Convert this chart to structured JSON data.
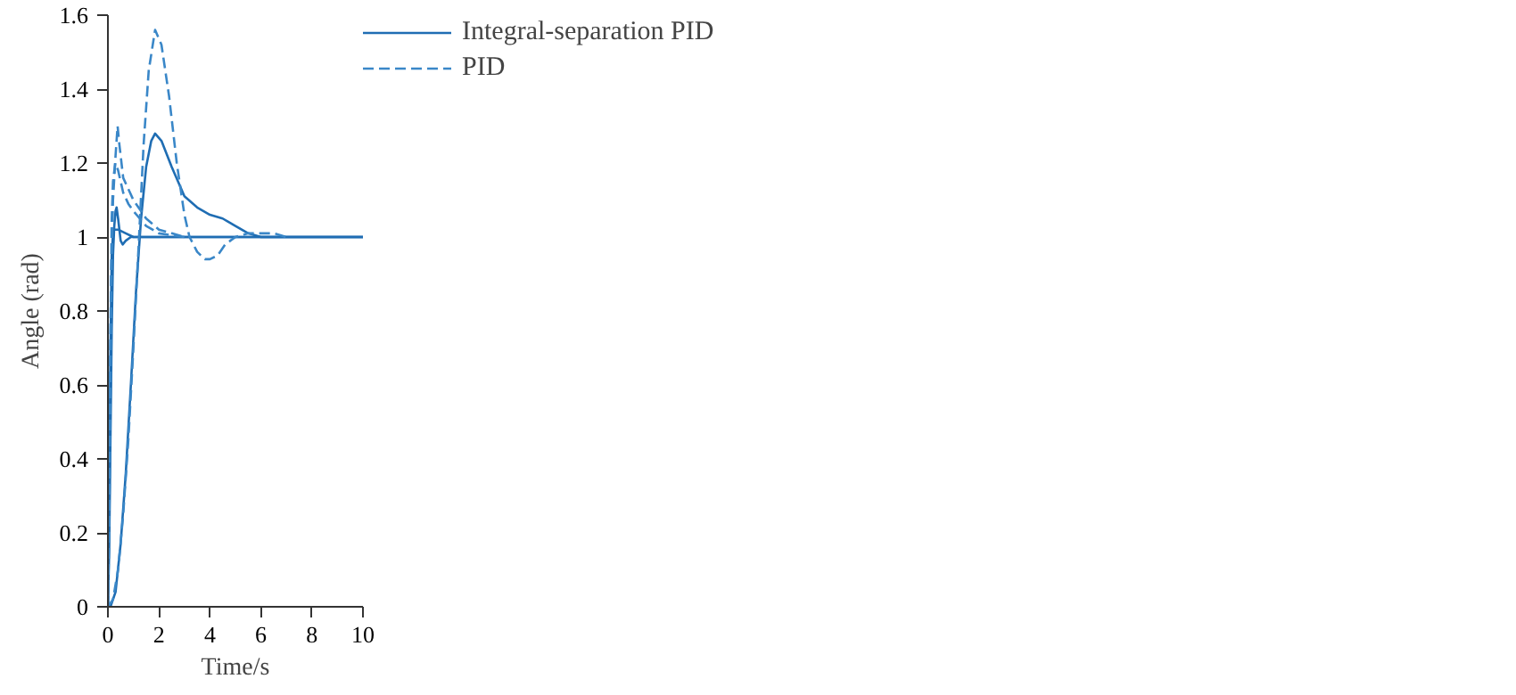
{
  "chart_data": {
    "type": "line",
    "xlabel": "Time/s",
    "ylabel": "Angle (rad)",
    "xlim": [
      0,
      10
    ],
    "xticks": [
      0,
      2,
      4,
      6,
      8,
      10
    ],
    "ylim": [
      0,
      1.6
    ],
    "yticks": [
      0,
      {
        "value": 0.2,
        "label": "0.2"
      },
      {
        "value": 0.4,
        "label": "0.4"
      },
      {
        "value": 0.6,
        "label": "0.6"
      },
      {
        "value": 0.8,
        "label": "0.8"
      },
      1,
      {
        "value": 1.2,
        "label": "1.2"
      },
      {
        "value": 1.4,
        "label": "1.4"
      },
      {
        "value": 1.6,
        "label": "1.6"
      }
    ],
    "grid": false,
    "legend": "top right",
    "marker": "none",
    "series": [
      {
        "name": "Integral-separation PID",
        "color": "#1f6db3",
        "line_style": "solid",
        "x": [
          0,
          0.05,
          0.1,
          0.15,
          0.2,
          0.25,
          0.3,
          0.34,
          0.4,
          0.5,
          0.58,
          0.7,
          0.9,
          1.2,
          2,
          10
        ],
        "values": [
          0,
          0.15,
          0.45,
          0.75,
          0.95,
          1.03,
          1.07,
          1.08,
          1.05,
          0.99,
          0.98,
          0.99,
          1.0,
          1.0,
          1.0,
          1.0
        ]
      },
      {
        "color": "#1f6db3",
        "line_style": "solid",
        "x": [
          0,
          0.05,
          0.1,
          0.15,
          0.2,
          0.25,
          0.4,
          0.7,
          1,
          10
        ],
        "values": [
          0,
          0.3,
          0.7,
          0.95,
          1.01,
          1.02,
          1.02,
          1.01,
          1.0,
          1.0
        ]
      },
      {
        "color": "#1f6db3",
        "line_style": "solid",
        "x": [
          0,
          0.1,
          0.3,
          0.5,
          0.7,
          0.9,
          1.1,
          1.3,
          1.5,
          1.7,
          1.85,
          2.1,
          2.5,
          3,
          3.5,
          4,
          4.5,
          5,
          5.5,
          6,
          7,
          10
        ],
        "values": [
          0,
          0,
          0.04,
          0.17,
          0.36,
          0.6,
          0.85,
          1.05,
          1.19,
          1.26,
          1.28,
          1.26,
          1.19,
          1.11,
          1.08,
          1.06,
          1.05,
          1.03,
          1.01,
          1.0,
          1.0,
          1.0
        ]
      },
      {
        "name": "PID",
        "color": "#3a87c8",
        "line_style": "dashed",
        "x": [
          0,
          0.05,
          0.1,
          0.15,
          0.2,
          0.3,
          0.38,
          0.45,
          0.6,
          0.8,
          1,
          1.5,
          2,
          2.5,
          3
        ],
        "values": [
          0,
          0.2,
          0.6,
          0.95,
          1.1,
          1.22,
          1.3,
          1.25,
          1.16,
          1.13,
          1.1,
          1.05,
          1.02,
          1.01,
          1.0
        ]
      },
      {
        "color": "#3a87c8",
        "line_style": "dashed",
        "x": [
          0,
          0.05,
          0.1,
          0.15,
          0.2,
          0.29,
          0.4,
          0.6,
          0.8,
          1,
          1.5,
          2,
          3
        ],
        "values": [
          0,
          0.3,
          0.75,
          1.05,
          1.15,
          1.2,
          1.18,
          1.12,
          1.09,
          1.07,
          1.03,
          1.01,
          1.0
        ]
      },
      {
        "color": "#3a87c8",
        "line_style": "dashed",
        "x": [
          0,
          0.2,
          0.4,
          0.6,
          0.8,
          1,
          1.2,
          1.4,
          1.6,
          1.85,
          2.1,
          2.4,
          2.7,
          3,
          3.2,
          3.5,
          3.8,
          4,
          4.3,
          4.6,
          5,
          5.5,
          6,
          6.5,
          7
        ],
        "values": [
          0,
          0.02,
          0.1,
          0.25,
          0.45,
          0.7,
          0.97,
          1.25,
          1.45,
          1.56,
          1.52,
          1.38,
          1.2,
          1.06,
          1.0,
          0.96,
          0.94,
          0.94,
          0.95,
          0.98,
          1.0,
          1.01,
          1.01,
          1.01,
          1.0
        ]
      }
    ]
  }
}
